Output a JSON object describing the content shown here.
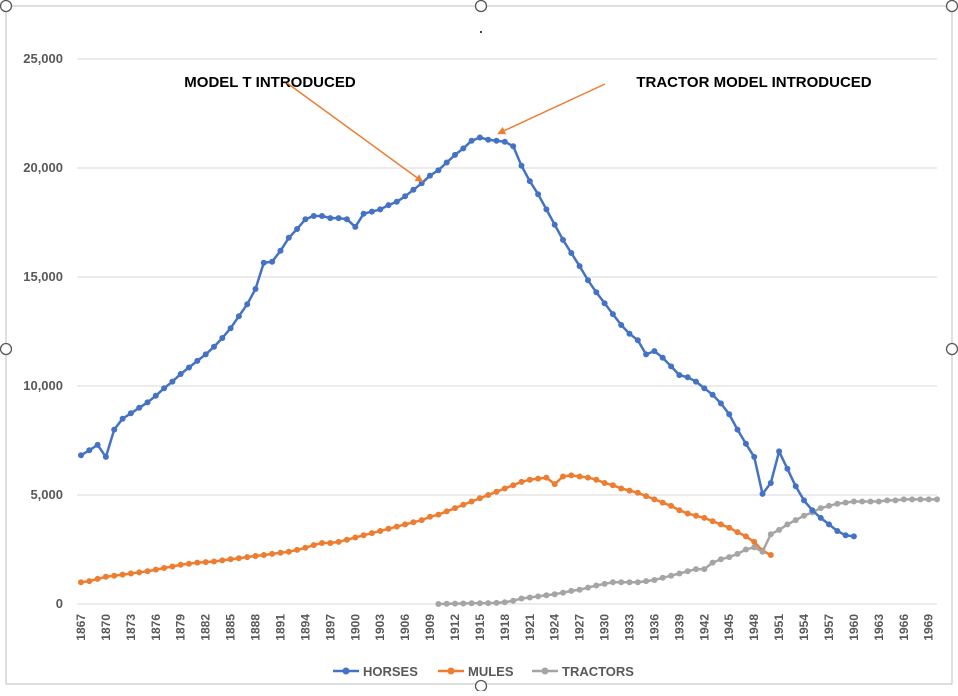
{
  "chart_data": {
    "type": "line",
    "title": "",
    "xlabel": "",
    "ylabel": "",
    "ylim": [
      0,
      25000
    ],
    "y_ticks": [
      "0",
      "5,000",
      "10,000",
      "15,000",
      "20,000",
      "25,000"
    ],
    "grid": true,
    "legend_position": "bottom",
    "x_start": 1867,
    "x_end": 1970,
    "x_tick_labels": [
      "1867",
      "1870",
      "1873",
      "1876",
      "1879",
      "1882",
      "1885",
      "1888",
      "1891",
      "1894",
      "1897",
      "1900",
      "1903",
      "1906",
      "1909",
      "1912",
      "1915",
      "1918",
      "1921",
      "1924",
      "1927",
      "1930",
      "1933",
      "1936",
      "1939",
      "1942",
      "1945",
      "1948",
      "1951",
      "1954",
      "1957",
      "1960",
      "1963",
      "1966",
      "1969"
    ],
    "annotations": [
      {
        "text": "MODEL T INTRODUCED",
        "year": 1908
      },
      {
        "text": "TRACTOR MODEL INTRODUCED",
        "year": 1917
      }
    ],
    "series": [
      {
        "name": "HORSES",
        "color": "#4472c4",
        "x": [
          1867,
          1868,
          1869,
          1870,
          1871,
          1872,
          1873,
          1874,
          1875,
          1876,
          1877,
          1878,
          1879,
          1880,
          1881,
          1882,
          1883,
          1884,
          1885,
          1886,
          1887,
          1888,
          1889,
          1890,
          1891,
          1892,
          1893,
          1894,
          1895,
          1896,
          1897,
          1898,
          1899,
          1900,
          1901,
          1902,
          1903,
          1904,
          1905,
          1906,
          1907,
          1908,
          1909,
          1910,
          1911,
          1912,
          1913,
          1914,
          1915,
          1916,
          1917,
          1918,
          1919,
          1920,
          1921,
          1922,
          1923,
          1924,
          1925,
          1926,
          1927,
          1928,
          1929,
          1930,
          1931,
          1932,
          1933,
          1934,
          1935,
          1936,
          1937,
          1938,
          1939,
          1940,
          1941,
          1942,
          1943,
          1944,
          1945,
          1946,
          1947,
          1948,
          1949,
          1950,
          1951,
          1952,
          1953,
          1954,
          1955,
          1956,
          1957,
          1958,
          1959,
          1960
        ],
        "values": [
          6820,
          7050,
          7300,
          6750,
          8000,
          8500,
          8750,
          9000,
          9250,
          9550,
          9900,
          10200,
          10550,
          10850,
          11150,
          11450,
          11800,
          12200,
          12650,
          13200,
          13750,
          14450,
          15650,
          15700,
          16200,
          16800,
          17200,
          17650,
          17800,
          17800,
          17700,
          17700,
          17650,
          17300,
          17900,
          18000,
          18100,
          18300,
          18450,
          18700,
          19000,
          19300,
          19650,
          19900,
          20250,
          20600,
          20900,
          21250,
          21400,
          21300,
          21250,
          21200,
          21000,
          20100,
          19400,
          18800,
          18100,
          17400,
          16700,
          16100,
          15500,
          14850,
          14300,
          13800,
          13300,
          12800,
          12400,
          12100,
          11450,
          11600,
          11300,
          10900,
          10500,
          10400,
          10200,
          9900,
          9600,
          9200,
          8700,
          8000,
          7350,
          6750,
          5050,
          5550,
          7000,
          6200,
          5400,
          4750,
          4300,
          3950,
          3650,
          3350,
          3150,
          3100
        ]
      },
      {
        "name": "MULES",
        "color": "#ed7d31",
        "x": [
          1867,
          1868,
          1869,
          1870,
          1871,
          1872,
          1873,
          1874,
          1875,
          1876,
          1877,
          1878,
          1879,
          1880,
          1881,
          1882,
          1883,
          1884,
          1885,
          1886,
          1887,
          1888,
          1889,
          1890,
          1891,
          1892,
          1893,
          1894,
          1895,
          1896,
          1897,
          1898,
          1899,
          1900,
          1901,
          1902,
          1903,
          1904,
          1905,
          1906,
          1907,
          1908,
          1909,
          1910,
          1911,
          1912,
          1913,
          1914,
          1915,
          1916,
          1917,
          1918,
          1919,
          1920,
          1921,
          1922,
          1923,
          1924,
          1925,
          1926,
          1927,
          1928,
          1929,
          1930,
          1931,
          1932,
          1933,
          1934,
          1935,
          1936,
          1937,
          1938,
          1939,
          1940,
          1941,
          1942,
          1943,
          1944,
          1945,
          1946,
          1947,
          1948,
          1949,
          1950
        ],
        "values": [
          1000,
          1050,
          1150,
          1250,
          1300,
          1350,
          1400,
          1450,
          1500,
          1580,
          1650,
          1720,
          1800,
          1850,
          1900,
          1920,
          1950,
          2000,
          2050,
          2100,
          2150,
          2200,
          2250,
          2300,
          2350,
          2400,
          2480,
          2580,
          2700,
          2800,
          2800,
          2850,
          2950,
          3050,
          3150,
          3250,
          3350,
          3450,
          3550,
          3650,
          3750,
          3850,
          4000,
          4100,
          4250,
          4400,
          4550,
          4700,
          4850,
          5000,
          5150,
          5300,
          5450,
          5600,
          5700,
          5750,
          5800,
          5500,
          5850,
          5900,
          5850,
          5800,
          5700,
          5550,
          5450,
          5300,
          5200,
          5100,
          4950,
          4800,
          4650,
          4500,
          4300,
          4150,
          4050,
          3950,
          3800,
          3650,
          3500,
          3300,
          3100,
          2850,
          2450,
          2250
        ]
      },
      {
        "name": "TRACTORS",
        "color": "#a5a5a5",
        "x": [
          1910,
          1911,
          1912,
          1913,
          1914,
          1915,
          1916,
          1917,
          1918,
          1919,
          1920,
          1921,
          1922,
          1923,
          1924,
          1925,
          1926,
          1927,
          1928,
          1929,
          1930,
          1931,
          1932,
          1933,
          1934,
          1935,
          1936,
          1937,
          1938,
          1939,
          1940,
          1941,
          1942,
          1943,
          1944,
          1945,
          1946,
          1947,
          1948,
          1949,
          1950,
          1951,
          1952,
          1953,
          1954,
          1955,
          1956,
          1957,
          1958,
          1959,
          1960,
          1961,
          1962,
          1963,
          1964,
          1965,
          1966,
          1967,
          1968,
          1969,
          1970
        ],
        "values": [
          0,
          10,
          20,
          25,
          30,
          30,
          40,
          50,
          80,
          150,
          250,
          300,
          350,
          400,
          450,
          520,
          600,
          650,
          750,
          850,
          920,
          1000,
          1000,
          1000,
          1000,
          1050,
          1100,
          1200,
          1300,
          1400,
          1500,
          1600,
          1600,
          1900,
          2050,
          2150,
          2300,
          2500,
          2600,
          2400,
          3200,
          3400,
          3650,
          3850,
          4050,
          4200,
          4400,
          4500,
          4600,
          4650,
          4700,
          4700,
          4700,
          4700,
          4750,
          4750,
          4800,
          4800,
          4800,
          4800,
          4800
        ]
      }
    ]
  }
}
